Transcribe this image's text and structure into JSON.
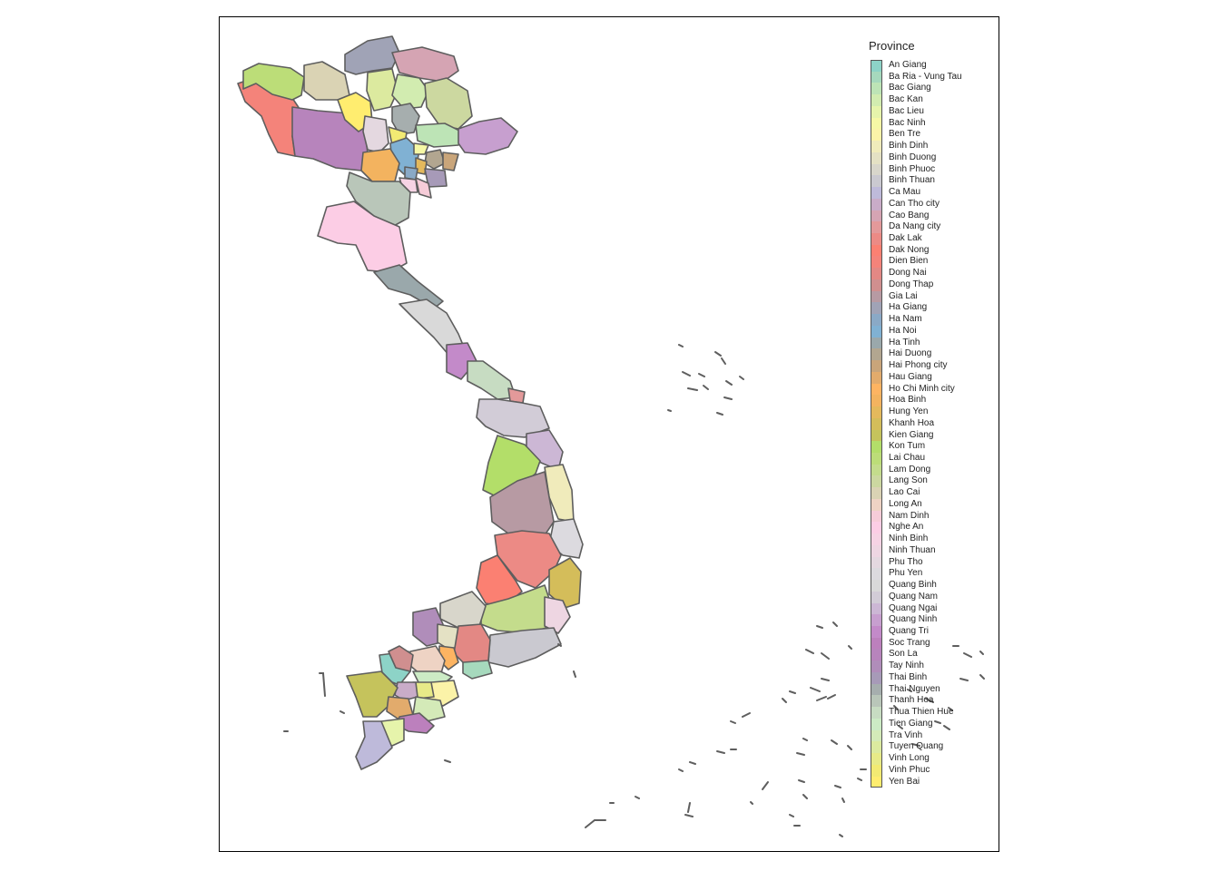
{
  "legend": {
    "title": "Province",
    "items": [
      {
        "name": "An Giang",
        "color": "#8dd3c7"
      },
      {
        "name": "Ba Ria - Vung Tau",
        "color": "#a6d9bd"
      },
      {
        "name": "Bac Giang",
        "color": "#bde4b6"
      },
      {
        "name": "Bac Kan",
        "color": "#d2ecb0"
      },
      {
        "name": "Bac Lieu",
        "color": "#e6f4ab"
      },
      {
        "name": "Bac Ninh",
        "color": "#f6f8a5"
      },
      {
        "name": "Ben Tre",
        "color": "#fbf3a8"
      },
      {
        "name": "Binh Dinh",
        "color": "#f0ebbb"
      },
      {
        "name": "Binh Duong",
        "color": "#e4e1c4"
      },
      {
        "name": "Binh Phuoc",
        "color": "#d8d6cb"
      },
      {
        "name": "Binh Thuan",
        "color": "#cac9d0"
      },
      {
        "name": "Ca Mau",
        "color": "#bebada"
      },
      {
        "name": "Can Tho city",
        "color": "#c9acc8"
      },
      {
        "name": "Cao Bang",
        "color": "#d5a4b3"
      },
      {
        "name": "Da Nang city",
        "color": "#e3999a"
      },
      {
        "name": "Dak Lak",
        "color": "#ec8a85"
      },
      {
        "name": "Dak Nong",
        "color": "#fb8072"
      },
      {
        "name": "Dien Bien",
        "color": "#f4837a"
      },
      {
        "name": "Dong Nai",
        "color": "#e38884"
      },
      {
        "name": "Dong Thap",
        "color": "#d08f8f"
      },
      {
        "name": "Gia Lai",
        "color": "#b79aa3"
      },
      {
        "name": "Ha Giang",
        "color": "#a0a3b6"
      },
      {
        "name": "Ha Nam",
        "color": "#8aa9c6"
      },
      {
        "name": "Ha Noi",
        "color": "#80b1d3"
      },
      {
        "name": "Ha Tinh",
        "color": "#9aa8ab"
      },
      {
        "name": "Hai Duong",
        "color": "#b2a690"
      },
      {
        "name": "Hai Phong city",
        "color": "#c9a57a"
      },
      {
        "name": "Hau Giang",
        "color": "#e2ab6c"
      },
      {
        "name": "Ho Chi Minh city",
        "color": "#fdb462"
      },
      {
        "name": "Hoa Binh",
        "color": "#f3b35f"
      },
      {
        "name": "Hung Yen",
        "color": "#e4b95c"
      },
      {
        "name": "Khanh Hoa",
        "color": "#d4bd5a"
      },
      {
        "name": "Kien Giang",
        "color": "#c5c35c"
      },
      {
        "name": "Kon Tum",
        "color": "#b3de69"
      },
      {
        "name": "Lai Chau",
        "color": "#bcdd78"
      },
      {
        "name": "Lam Dong",
        "color": "#c4dc8c"
      },
      {
        "name": "Lang Son",
        "color": "#ccd8a0"
      },
      {
        "name": "Lao Cai",
        "color": "#dad3b4"
      },
      {
        "name": "Long An",
        "color": "#eed3c4"
      },
      {
        "name": "Nam Dinh",
        "color": "#f6ccd8"
      },
      {
        "name": "Nghe An",
        "color": "#fccde5"
      },
      {
        "name": "Ninh Binh",
        "color": "#f6d3e4"
      },
      {
        "name": "Ninh Thuan",
        "color": "#eed6e2"
      },
      {
        "name": "Phu Tho",
        "color": "#e4d8e0"
      },
      {
        "name": "Phu Yen",
        "color": "#dcdadf"
      },
      {
        "name": "Quang Binh",
        "color": "#d9d9d9"
      },
      {
        "name": "Quang Nam",
        "color": "#d2ccd7"
      },
      {
        "name": "Quang Ngai",
        "color": "#ccb7d5"
      },
      {
        "name": "Quang Ninh",
        "color": "#c79fcf"
      },
      {
        "name": "Quang Tri",
        "color": "#c38ac9"
      },
      {
        "name": "Soc Trang",
        "color": "#bc80bd"
      },
      {
        "name": "Son La",
        "color": "#b784bc"
      },
      {
        "name": "Tay Ninh",
        "color": "#b08dba"
      },
      {
        "name": "Thai Binh",
        "color": "#a79ab8"
      },
      {
        "name": "Thai Nguyen",
        "color": "#a6aeae"
      },
      {
        "name": "Thanh Hoa",
        "color": "#b9c6b9"
      },
      {
        "name": "Thua Thien Hue",
        "color": "#c7dcc2"
      },
      {
        "name": "Tien Giang",
        "color": "#ccebc5"
      },
      {
        "name": "Tra Vinh",
        "color": "#d4eab8"
      },
      {
        "name": "Tuyen Quang",
        "color": "#dcea9f"
      },
      {
        "name": "Vinh Long",
        "color": "#e7ea88"
      },
      {
        "name": "Vinh Phuc",
        "color": "#f2ea73"
      },
      {
        "name": "Yen Bai",
        "color": "#ffed6f"
      }
    ]
  }
}
